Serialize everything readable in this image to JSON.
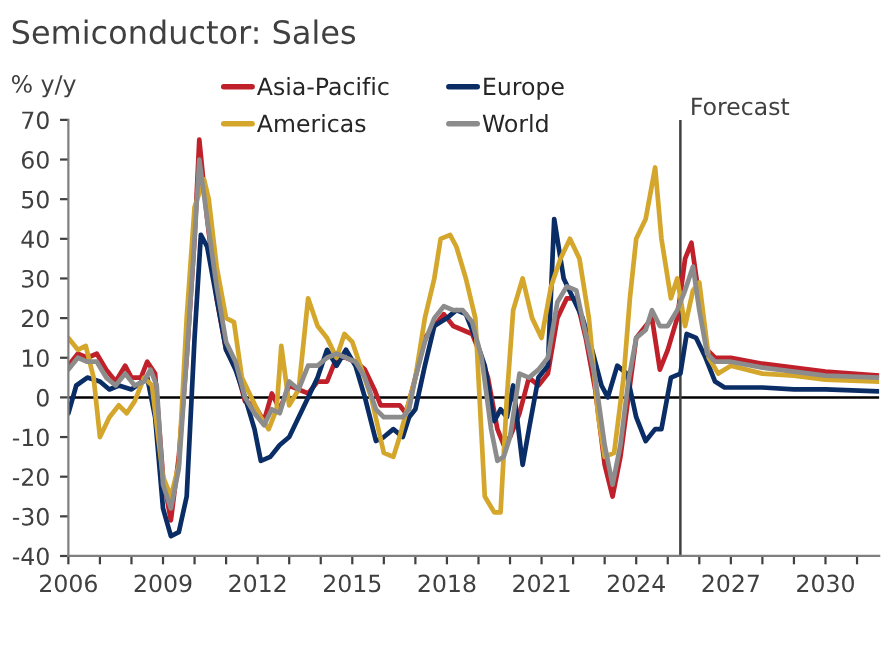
{
  "chart_data": {
    "type": "line",
    "title": "Semiconductor: Sales",
    "ylabel": "% y/y",
    "xlim": [
      2006,
      2031.7
    ],
    "ylim": [
      -40,
      70
    ],
    "xticks": [
      2006,
      {
        "value": 2007,
        "label": null
      },
      {
        "value": 2008,
        "label": null
      },
      2009,
      {
        "value": 2010,
        "label": null
      },
      {
        "value": 2011,
        "label": null
      },
      2012,
      {
        "value": 2013,
        "label": null
      },
      {
        "value": 2014,
        "label": null
      },
      2015,
      {
        "value": 2016,
        "label": null
      },
      {
        "value": 2017,
        "label": null
      },
      2018,
      {
        "value": 2019,
        "label": null
      },
      {
        "value": 2020,
        "label": null
      },
      2021,
      {
        "value": 2022,
        "label": null
      },
      {
        "value": 2023,
        "label": null
      },
      2024,
      {
        "value": 2025,
        "label": null
      },
      {
        "value": 2026,
        "label": null
      },
      2027,
      {
        "value": 2028,
        "label": null
      },
      {
        "value": 2029,
        "label": null
      },
      2030,
      {
        "value": 2031,
        "label": null
      }
    ],
    "yticks": [
      -40,
      -30,
      -20,
      -10,
      0,
      10,
      20,
      30,
      40,
      50,
      60,
      70
    ],
    "grid": false,
    "legend": "top left",
    "ref_lines": [
      {
        "axis": "y",
        "value": 0,
        "label": null,
        "color": "#000000"
      },
      {
        "axis": "x",
        "value": 2025.4,
        "label": "Forecast",
        "color": "#404040"
      }
    ],
    "series": [
      {
        "name": "Asia-Pacific",
        "color": "#c0202a",
        "x": [
          2006.0,
          2006.3,
          2006.6,
          2006.9,
          2007.2,
          2007.5,
          2007.8,
          2008.0,
          2008.3,
          2008.5,
          2008.75,
          2009.0,
          2009.25,
          2009.5,
          2009.75,
          2010.0,
          2010.15,
          2010.4,
          2010.7,
          2011.0,
          2011.3,
          2011.6,
          2011.9,
          2012.2,
          2012.45,
          2012.7,
          2013.0,
          2013.3,
          2013.6,
          2013.9,
          2014.2,
          2014.5,
          2014.8,
          2015.1,
          2015.4,
          2015.7,
          2015.9,
          2016.2,
          2016.5,
          2016.7,
          2017.0,
          2017.3,
          2017.6,
          2017.9,
          2018.2,
          2018.5,
          2018.8,
          2019.0,
          2019.3,
          2019.6,
          2019.8,
          2020.0,
          2020.3,
          2020.6,
          2020.9,
          2021.2,
          2021.5,
          2021.8,
          2022.1,
          2022.4,
          2022.7,
          2023.0,
          2023.25,
          2023.5,
          2023.75,
          2024.0,
          2024.3,
          2024.5,
          2024.75,
          2025.0,
          2025.3,
          2025.55,
          2025.75,
          2026.0,
          2026.25,
          2026.5,
          2027,
          2028,
          2029,
          2030,
          2031.7
        ],
        "values": [
          8,
          11,
          10,
          11,
          7,
          4,
          8,
          5,
          5,
          9,
          6,
          -20,
          -31,
          -15,
          10,
          40,
          65,
          45,
          25,
          12,
          8,
          -1,
          -2,
          -6,
          1,
          -3,
          3,
          2,
          1,
          4,
          4,
          10,
          10,
          9,
          7,
          2,
          -2,
          -2,
          -2,
          -4,
          5,
          15,
          18,
          21,
          18,
          17,
          16,
          12,
          5,
          -8,
          -12,
          -10,
          -4,
          5,
          3,
          6,
          20,
          25,
          25,
          15,
          2,
          -17,
          -25,
          -15,
          0,
          15,
          18,
          20,
          7,
          12,
          20,
          35,
          39,
          25,
          12,
          10,
          10,
          8.5,
          7.5,
          6.5,
          5.5
        ]
      },
      {
        "name": "Europe",
        "color": "#0b2d66",
        "x": [
          2006.0,
          2006.25,
          2006.6,
          2007.0,
          2007.3,
          2007.6,
          2008.0,
          2008.5,
          2008.75,
          2009.0,
          2009.25,
          2009.5,
          2009.75,
          2010.0,
          2010.2,
          2010.4,
          2010.7,
          2011.0,
          2011.3,
          2011.6,
          2011.9,
          2012.1,
          2012.4,
          2012.7,
          2013.0,
          2013.3,
          2013.6,
          2013.9,
          2014.2,
          2014.5,
          2014.8,
          2015.1,
          2015.4,
          2015.75,
          2016.0,
          2016.3,
          2016.6,
          2016.8,
          2017.0,
          2017.3,
          2017.6,
          2018.0,
          2018.3,
          2018.6,
          2018.9,
          2019.2,
          2019.5,
          2019.7,
          2019.9,
          2020.1,
          2020.4,
          2020.6,
          2020.9,
          2021.2,
          2021.4,
          2021.7,
          2022.0,
          2022.3,
          2022.6,
          2022.9,
          2023.1,
          2023.4,
          2023.7,
          2024.0,
          2024.3,
          2024.6,
          2024.8,
          2025.1,
          2025.4,
          2025.6,
          2025.9,
          2026.2,
          2026.5,
          2026.8,
          2028,
          2029,
          2030,
          2031.7
        ],
        "values": [
          -4,
          3,
          5,
          4,
          2,
          3,
          2,
          5,
          -5,
          -28,
          -35,
          -34,
          -25,
          15,
          41,
          38,
          25,
          12,
          7,
          0,
          -8,
          -16,
          -15,
          -12,
          -10,
          -5,
          0,
          5,
          12,
          8,
          12,
          8,
          0,
          -11,
          -10,
          -8,
          -10,
          -5,
          -3,
          8,
          18,
          20,
          22,
          21,
          15,
          8,
          -6,
          -3,
          -5,
          3,
          -17,
          -8,
          5,
          8,
          45,
          30,
          25,
          20,
          12,
          3,
          0,
          8,
          6,
          -5,
          -11,
          -8,
          -8,
          5,
          6,
          16,
          15,
          10,
          4,
          2.5,
          2.5,
          2.0,
          2.0,
          1.5
        ]
      },
      {
        "name": "Americas",
        "color": "#d4a72c",
        "x": [
          2006.0,
          2006.3,
          2006.55,
          2006.8,
          2007.0,
          2007.3,
          2007.6,
          2007.85,
          2008.1,
          2008.4,
          2008.65,
          2009.0,
          2009.25,
          2009.5,
          2009.75,
          2010.0,
          2010.3,
          2010.45,
          2010.7,
          2011.0,
          2011.25,
          2011.5,
          2011.8,
          2012.1,
          2012.35,
          2012.6,
          2012.75,
          2013.0,
          2013.3,
          2013.6,
          2013.9,
          2014.2,
          2014.5,
          2014.75,
          2015.0,
          2015.3,
          2015.6,
          2016.0,
          2016.3,
          2016.5,
          2017.0,
          2017.3,
          2017.6,
          2017.8,
          2018.1,
          2018.3,
          2018.6,
          2018.9,
          2019.2,
          2019.5,
          2019.7,
          2019.9,
          2020.1,
          2020.4,
          2020.7,
          2021.0,
          2021.3,
          2021.6,
          2021.9,
          2022.2,
          2022.5,
          2022.8,
          2023.0,
          2023.3,
          2023.6,
          2023.8,
          2024.0,
          2024.3,
          2024.6,
          2024.8,
          2025.1,
          2025.3,
          2025.55,
          2025.8,
          2026.0,
          2026.3,
          2026.6,
          2027,
          2028,
          2029,
          2030,
          2031.7
        ],
        "values": [
          15,
          12,
          13,
          5,
          -10,
          -5,
          -2,
          -4,
          -1,
          5,
          3,
          -20,
          -25,
          -17,
          20,
          48,
          55,
          50,
          33,
          20,
          19,
          5,
          0,
          -5,
          -8,
          -3,
          13,
          -2,
          2,
          25,
          18,
          15,
          10,
          16,
          14,
          7,
          0,
          -14,
          -15,
          -10,
          5,
          20,
          30,
          40,
          41,
          38,
          30,
          20,
          -25,
          -29,
          -29,
          0,
          22,
          30,
          20,
          15,
          28,
          35,
          40,
          35,
          20,
          -5,
          -15,
          -14,
          5,
          25,
          40,
          45,
          58,
          40,
          25,
          30,
          18,
          27,
          29,
          10,
          6,
          8,
          6,
          5.5,
          4.5,
          4.0
        ]
      },
      {
        "name": "World",
        "color": "#8c8c8c",
        "x": [
          2006.0,
          2006.3,
          2006.6,
          2006.9,
          2007.2,
          2007.5,
          2007.8,
          2008.1,
          2008.4,
          2008.6,
          2008.8,
          2009.0,
          2009.25,
          2009.5,
          2009.75,
          2010.0,
          2010.15,
          2010.4,
          2010.7,
          2011.0,
          2011.3,
          2011.6,
          2011.9,
          2012.2,
          2012.45,
          2012.7,
          2013.0,
          2013.3,
          2013.6,
          2013.9,
          2014.2,
          2014.5,
          2014.8,
          2015.1,
          2015.4,
          2015.75,
          2016.0,
          2016.3,
          2016.6,
          2016.8,
          2017.0,
          2017.3,
          2017.6,
          2017.9,
          2018.2,
          2018.5,
          2018.8,
          2019.1,
          2019.4,
          2019.6,
          2019.8,
          2020.0,
          2020.3,
          2020.6,
          2020.9,
          2021.2,
          2021.5,
          2021.8,
          2022.1,
          2022.4,
          2022.7,
          2023.0,
          2023.25,
          2023.5,
          2023.75,
          2024.0,
          2024.3,
          2024.5,
          2024.75,
          2025.0,
          2025.3,
          2025.55,
          2025.8,
          2026.0,
          2026.25,
          2026.5,
          2027,
          2028,
          2029,
          2030,
          2031.7
        ],
        "values": [
          7,
          10,
          9,
          9,
          5,
          3,
          6,
          3,
          4,
          7,
          3,
          -22,
          -28,
          -18,
          10,
          40,
          60,
          45,
          28,
          14,
          9,
          0,
          -4,
          -7,
          -3,
          -4,
          4,
          2,
          8,
          8,
          10,
          11,
          10,
          9,
          5,
          -3,
          -5,
          -5,
          -5,
          -3,
          5,
          14,
          20,
          23,
          22,
          22,
          19,
          10,
          -8,
          -16,
          -15,
          -10,
          6,
          5,
          7,
          10,
          24,
          28,
          27,
          16,
          5,
          -12,
          -22,
          -12,
          4,
          15,
          17,
          22,
          18,
          18,
          22,
          27,
          33,
          22,
          11,
          9,
          9,
          7.5,
          6.5,
          5.5,
          5.0
        ]
      }
    ]
  }
}
